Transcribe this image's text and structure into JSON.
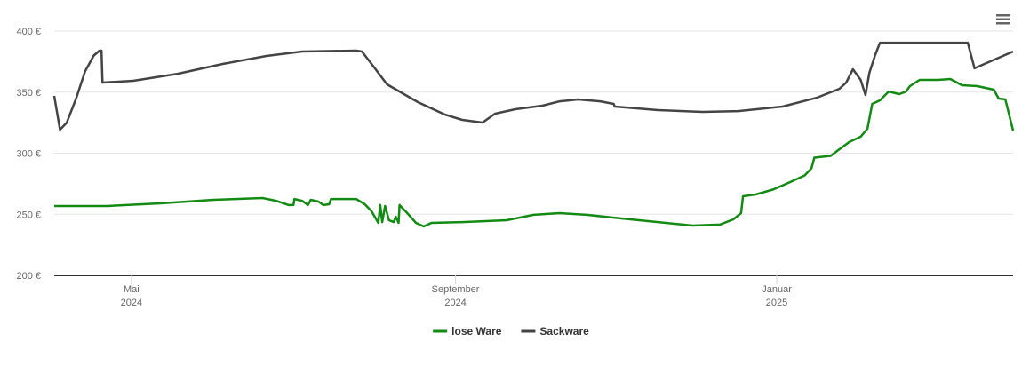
{
  "chart_data": {
    "type": "line",
    "series": [
      {
        "name": "lose Ware",
        "color": "#138a13",
        "x": [
          2024.251,
          2024.306,
          2024.361,
          2024.416,
          2024.467,
          2024.481,
          2024.494,
          2024.499,
          2024.5,
          2024.508,
          2024.514,
          2024.517,
          2024.525,
          2024.53,
          2024.536,
          2024.538,
          2024.564,
          2024.573,
          2024.58,
          2024.587,
          2024.589,
          2024.591,
          2024.594,
          2024.598,
          2024.603,
          2024.605,
          2024.608,
          2024.609,
          2024.617,
          2024.626,
          2024.634,
          2024.642,
          2024.674,
          2024.72,
          2024.748,
          2024.775,
          2024.803,
          2024.84,
          2024.877,
          2024.913,
          2024.941,
          2024.955,
          2024.963,
          2024.965,
          2024.978,
          2024.996,
          2025.015,
          2025.029,
          2025.036,
          2025.039,
          2025.056,
          2025.065,
          2025.075,
          2025.087,
          2025.094,
          2025.099,
          2025.107,
          2025.116,
          2025.127,
          2025.134,
          2025.138,
          2025.148,
          2025.167,
          2025.18,
          2025.192,
          2025.208,
          2025.225,
          2025.23,
          2025.237,
          2025.245
        ],
        "values": [
          256.7,
          256.7,
          258.9,
          261.8,
          263.3,
          261,
          257.5,
          257.5,
          262.5,
          261,
          257.5,
          261.8,
          260.4,
          257.5,
          258.2,
          262.5,
          262.5,
          258.2,
          252.4,
          242.9,
          257.5,
          243.6,
          256.7,
          245.1,
          243.6,
          248,
          242.9,
          257.5,
          250.9,
          242.9,
          240,
          242.9,
          243.6,
          245.1,
          249.5,
          250.9,
          249.5,
          246.5,
          243.6,
          240.7,
          241.5,
          245.8,
          250.9,
          264.7,
          266.2,
          270.2,
          276.7,
          281.8,
          287.6,
          296.4,
          297.8,
          303.3,
          309.1,
          313.5,
          320,
          340.4,
          343.3,
          350.5,
          348.4,
          350.5,
          354.9,
          360,
          360,
          360.7,
          355.6,
          354.9,
          352,
          344.7,
          344,
          318.5
        ]
      },
      {
        "name": "Sackware",
        "color": "#444444",
        "x": [
          2024.251,
          2024.257,
          2024.264,
          2024.274,
          2024.283,
          2024.292,
          2024.298,
          2024.3,
          2024.301,
          2024.333,
          2024.379,
          2024.425,
          2024.471,
          2024.508,
          2024.564,
          2024.57,
          2024.582,
          2024.596,
          2024.628,
          2024.656,
          2024.674,
          2024.695,
          2024.708,
          2024.729,
          2024.757,
          2024.775,
          2024.794,
          2024.817,
          2024.831,
          2024.832,
          2024.877,
          2024.923,
          2024.96,
          2025.006,
          2025.042,
          2025.065,
          2025.072,
          2025.079,
          2025.087,
          2025.092,
          2025.096,
          2025.102,
          2025.107,
          2025.116,
          2025.198,
          2025.205,
          2025.245
        ],
        "values": [
          346.9,
          319.3,
          325,
          345.5,
          367,
          380,
          384,
          384,
          357.8,
          359.3,
          365,
          373,
          379.6,
          383.3,
          384,
          383.3,
          371,
          356.4,
          341.8,
          331.6,
          327.3,
          325.1,
          332.4,
          336,
          338.9,
          342.5,
          344,
          342.5,
          340.4,
          338.2,
          335.3,
          333.8,
          334.5,
          338.2,
          345.5,
          352.7,
          357.8,
          368.7,
          360,
          347.6,
          365.8,
          380.4,
          390.5,
          390.5,
          390.5,
          369.5,
          383.3
        ]
      }
    ],
    "xlim": [
      2024.251,
      2025.245
    ],
    "xticks": [
      {
        "value": 2024.331,
        "label": [
          "Mai",
          "2024"
        ]
      },
      {
        "value": 2024.667,
        "label": [
          "September",
          "2024"
        ]
      },
      {
        "value": 2025,
        "label": [
          "Januar",
          "2025"
        ]
      }
    ],
    "ylim": [
      200,
      400
    ],
    "yticks": [
      {
        "value": 200,
        "label": "200 €"
      },
      {
        "value": 250,
        "label": "250 €"
      },
      {
        "value": 300,
        "label": "300 €"
      },
      {
        "value": 350,
        "label": "350 €"
      },
      {
        "value": 400,
        "label": "400 €"
      }
    ],
    "grid": true,
    "legend": "bottom"
  }
}
